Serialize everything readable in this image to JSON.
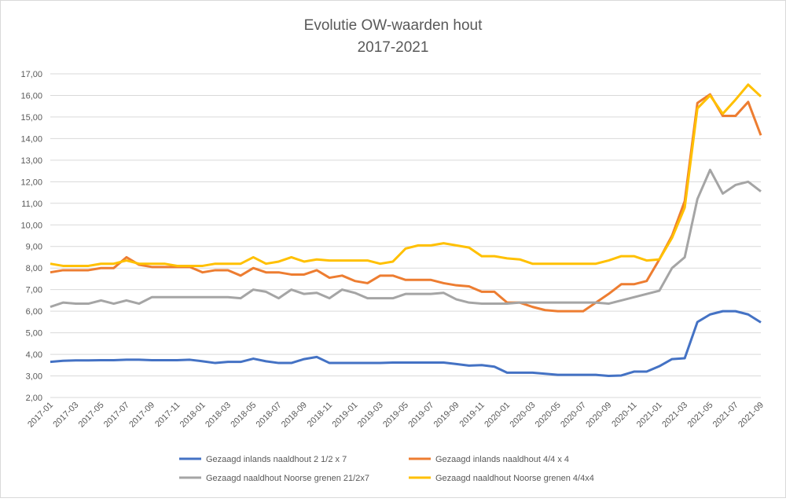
{
  "chart_data": {
    "type": "line",
    "title": "Evolutie OW-waarden hout",
    "subtitle": "2017-2021",
    "categories": [
      "2017-01",
      null,
      "2017-03",
      null,
      "2017-05",
      null,
      "2017-07",
      null,
      "2017-09",
      null,
      "2017-11",
      null,
      "2018-01",
      null,
      "2018-03",
      null,
      "2018-05",
      null,
      "2018-07",
      null,
      "2018-09",
      null,
      "2018-11",
      null,
      "2019-01",
      null,
      "2019-03",
      null,
      "2019-05",
      null,
      "2019-07",
      null,
      "2019-09",
      null,
      "2019-11",
      null,
      "2020-01",
      null,
      "2020-03",
      null,
      "2020-05",
      null,
      "2020-07",
      null,
      "2020-09",
      null,
      "2020-11",
      null,
      "2021-01",
      null,
      "2021-03",
      null,
      "2021-05",
      null,
      "2021-07",
      null,
      "2021-09"
    ],
    "series": [
      {
        "name": "Gezaagd inlands naaldhout 2 1/2 x 7",
        "color": "#4472c4",
        "values": [
          3.65,
          3.7,
          3.72,
          3.72,
          3.73,
          3.73,
          3.75,
          3.75,
          3.73,
          3.73,
          3.73,
          3.75,
          3.68,
          3.6,
          3.65,
          3.65,
          3.8,
          3.68,
          3.6,
          3.6,
          3.78,
          3.88,
          3.6,
          3.6,
          3.6,
          3.6,
          3.6,
          3.62,
          3.62,
          3.62,
          3.62,
          3.62,
          3.55,
          3.48,
          3.5,
          3.43,
          3.15,
          3.15,
          3.15,
          3.1,
          3.05,
          3.05,
          3.05,
          3.05,
          3.0,
          3.02,
          3.2,
          3.2,
          3.45,
          3.78,
          3.82,
          5.5,
          5.85,
          6.0,
          6.0,
          5.85,
          5.48
        ]
      },
      {
        "name": "Gezaagd inlands naaldhout 4/4 x 4",
        "color": "#ed7d31",
        "values": [
          7.8,
          7.9,
          7.9,
          7.9,
          8.0,
          8.0,
          8.5,
          8.15,
          8.05,
          8.05,
          8.05,
          8.05,
          7.8,
          7.9,
          7.9,
          7.65,
          8.0,
          7.8,
          7.8,
          7.7,
          7.7,
          7.9,
          7.55,
          7.65,
          7.4,
          7.3,
          7.65,
          7.65,
          7.45,
          7.45,
          7.45,
          7.3,
          7.2,
          7.15,
          6.9,
          6.9,
          6.4,
          6.4,
          6.2,
          6.05,
          6.0,
          6.0,
          6.0,
          6.4,
          6.8,
          7.25,
          7.25,
          7.4,
          8.4,
          9.5,
          11.1,
          15.65,
          16.05,
          15.05,
          15.05,
          15.7,
          14.15
        ]
      },
      {
        "name": "Gezaagd naaldhout Noorse grenen 21/2x7",
        "color": "#a5a5a5",
        "values": [
          6.2,
          6.4,
          6.35,
          6.35,
          6.5,
          6.35,
          6.5,
          6.35,
          6.65,
          6.65,
          6.65,
          6.65,
          6.65,
          6.65,
          6.65,
          6.6,
          7.0,
          6.9,
          6.6,
          7.0,
          6.8,
          6.85,
          6.6,
          7.0,
          6.85,
          6.6,
          6.6,
          6.6,
          6.8,
          6.8,
          6.8,
          6.85,
          6.55,
          6.4,
          6.35,
          6.35,
          6.35,
          6.4,
          6.4,
          6.4,
          6.4,
          6.4,
          6.4,
          6.4,
          6.35,
          6.5,
          6.65,
          6.8,
          6.95,
          8.0,
          8.5,
          11.2,
          12.55,
          11.45,
          11.85,
          12.0,
          11.55
        ]
      },
      {
        "name": "Gezaagd naaldhout Noorse grenen 4/4x4",
        "color": "#ffc000",
        "values": [
          8.2,
          8.1,
          8.1,
          8.1,
          8.2,
          8.2,
          8.35,
          8.2,
          8.2,
          8.2,
          8.1,
          8.1,
          8.1,
          8.2,
          8.2,
          8.2,
          8.5,
          8.2,
          8.3,
          8.5,
          8.3,
          8.4,
          8.35,
          8.35,
          8.35,
          8.35,
          8.2,
          8.3,
          8.9,
          9.05,
          9.05,
          9.15,
          9.05,
          8.95,
          8.55,
          8.55,
          8.45,
          8.4,
          8.2,
          8.2,
          8.2,
          8.2,
          8.2,
          8.2,
          8.35,
          8.55,
          8.55,
          8.35,
          8.4,
          9.4,
          10.8,
          15.4,
          16.0,
          15.15,
          15.8,
          16.5,
          15.95
        ]
      }
    ],
    "ylim": [
      2,
      17
    ],
    "yticks": [
      {
        "value": 2,
        "label": "2,00"
      },
      {
        "value": 3,
        "label": "3,00"
      },
      {
        "value": 4,
        "label": "4,00"
      },
      {
        "value": 5,
        "label": "5,00"
      },
      {
        "value": 6,
        "label": "6,00"
      },
      {
        "value": 7,
        "label": "7,00"
      },
      {
        "value": 8,
        "label": "8,00"
      },
      {
        "value": 9,
        "label": "9,00"
      },
      {
        "value": 10,
        "label": "10,00"
      },
      {
        "value": 11,
        "label": "11,00"
      },
      {
        "value": 12,
        "label": "12,00"
      },
      {
        "value": 13,
        "label": "13,00"
      },
      {
        "value": 14,
        "label": "14,00"
      },
      {
        "value": 15,
        "label": "15,00"
      },
      {
        "value": 16,
        "label": "16,00"
      },
      {
        "value": 17,
        "label": "17,00"
      }
    ],
    "grid": true,
    "legend": "bottom"
  }
}
